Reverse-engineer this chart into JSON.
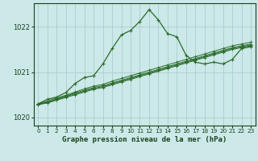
{
  "title": "Graphe pression niveau de la mer (hPa)",
  "x_hours": [
    0,
    1,
    2,
    3,
    4,
    5,
    6,
    7,
    8,
    9,
    10,
    11,
    12,
    13,
    14,
    15,
    16,
    17,
    18,
    19,
    20,
    21,
    22,
    23
  ],
  "line_main": [
    1020.3,
    1020.4,
    1020.45,
    1020.55,
    1020.75,
    1020.88,
    1020.92,
    1021.18,
    1021.52,
    1021.82,
    1021.92,
    1022.12,
    1022.38,
    1022.15,
    1021.85,
    1021.78,
    1021.37,
    1021.22,
    1021.18,
    1021.22,
    1021.18,
    1021.28,
    1021.52,
    1021.56
  ],
  "trend_lines": [
    [
      1020.28,
      1020.32,
      1020.38,
      1020.44,
      1020.5,
      1020.56,
      1020.62,
      1020.66,
      1020.72,
      1020.78,
      1020.84,
      1020.9,
      1020.96,
      1021.02,
      1021.08,
      1021.14,
      1021.2,
      1021.26,
      1021.32,
      1021.38,
      1021.44,
      1021.5,
      1021.54,
      1021.58
    ],
    [
      1020.29,
      1020.33,
      1020.39,
      1020.46,
      1020.52,
      1020.58,
      1020.64,
      1020.68,
      1020.74,
      1020.8,
      1020.86,
      1020.92,
      1020.98,
      1021.04,
      1021.1,
      1021.16,
      1021.22,
      1021.28,
      1021.34,
      1021.4,
      1021.46,
      1021.52,
      1021.56,
      1021.6
    ],
    [
      1020.29,
      1020.34,
      1020.41,
      1020.47,
      1020.54,
      1020.6,
      1020.66,
      1020.7,
      1020.76,
      1020.82,
      1020.88,
      1020.94,
      1021.0,
      1021.06,
      1021.12,
      1021.18,
      1021.24,
      1021.3,
      1021.36,
      1021.42,
      1021.48,
      1021.54,
      1021.58,
      1021.62
    ],
    [
      1020.3,
      1020.36,
      1020.43,
      1020.49,
      1020.56,
      1020.63,
      1020.69,
      1020.73,
      1020.8,
      1020.86,
      1020.92,
      1020.98,
      1021.04,
      1021.1,
      1021.16,
      1021.22,
      1021.28,
      1021.34,
      1021.4,
      1021.46,
      1021.52,
      1021.58,
      1021.62,
      1021.66
    ]
  ],
  "ylim": [
    1019.82,
    1022.52
  ],
  "yticks": [
    1020,
    1021,
    1022
  ],
  "bg_color": "#cce8e8",
  "grid_color": "#aacece",
  "line_color": "#2a6b2a",
  "label_color": "#1a401a"
}
